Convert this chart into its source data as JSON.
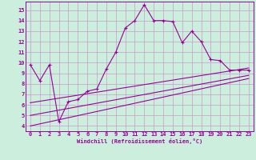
{
  "xlabel": "Windchill (Refroidissement éolien,°C)",
  "background_color": "#cceedd",
  "grid_color": "#cc99cc",
  "line_color": "#990099",
  "xlim": [
    -0.5,
    23.5
  ],
  "ylim": [
    3.5,
    15.8
  ],
  "xticks": [
    0,
    1,
    2,
    3,
    4,
    5,
    6,
    7,
    8,
    9,
    10,
    11,
    12,
    13,
    14,
    15,
    16,
    17,
    18,
    19,
    20,
    21,
    22,
    23
  ],
  "yticks": [
    4,
    5,
    6,
    7,
    8,
    9,
    10,
    11,
    12,
    13,
    14,
    15
  ],
  "main_line_x": [
    0,
    1,
    2,
    3,
    4,
    5,
    6,
    7,
    8,
    9,
    10,
    11,
    12,
    13,
    14,
    15,
    16,
    17,
    18,
    19,
    20,
    21,
    22,
    23
  ],
  "main_line_y": [
    9.8,
    8.3,
    9.8,
    4.4,
    6.3,
    6.5,
    7.3,
    7.5,
    9.4,
    11.0,
    13.3,
    14.0,
    15.5,
    14.0,
    14.0,
    13.9,
    11.9,
    13.0,
    12.0,
    10.3,
    10.2,
    9.3,
    9.3,
    9.3
  ],
  "line2_x": [
    0,
    23
  ],
  "line2_y": [
    6.2,
    9.5
  ],
  "line3_x": [
    0,
    23
  ],
  "line3_y": [
    5.0,
    8.8
  ],
  "line4_x": [
    0,
    23
  ],
  "line4_y": [
    4.0,
    8.5
  ]
}
